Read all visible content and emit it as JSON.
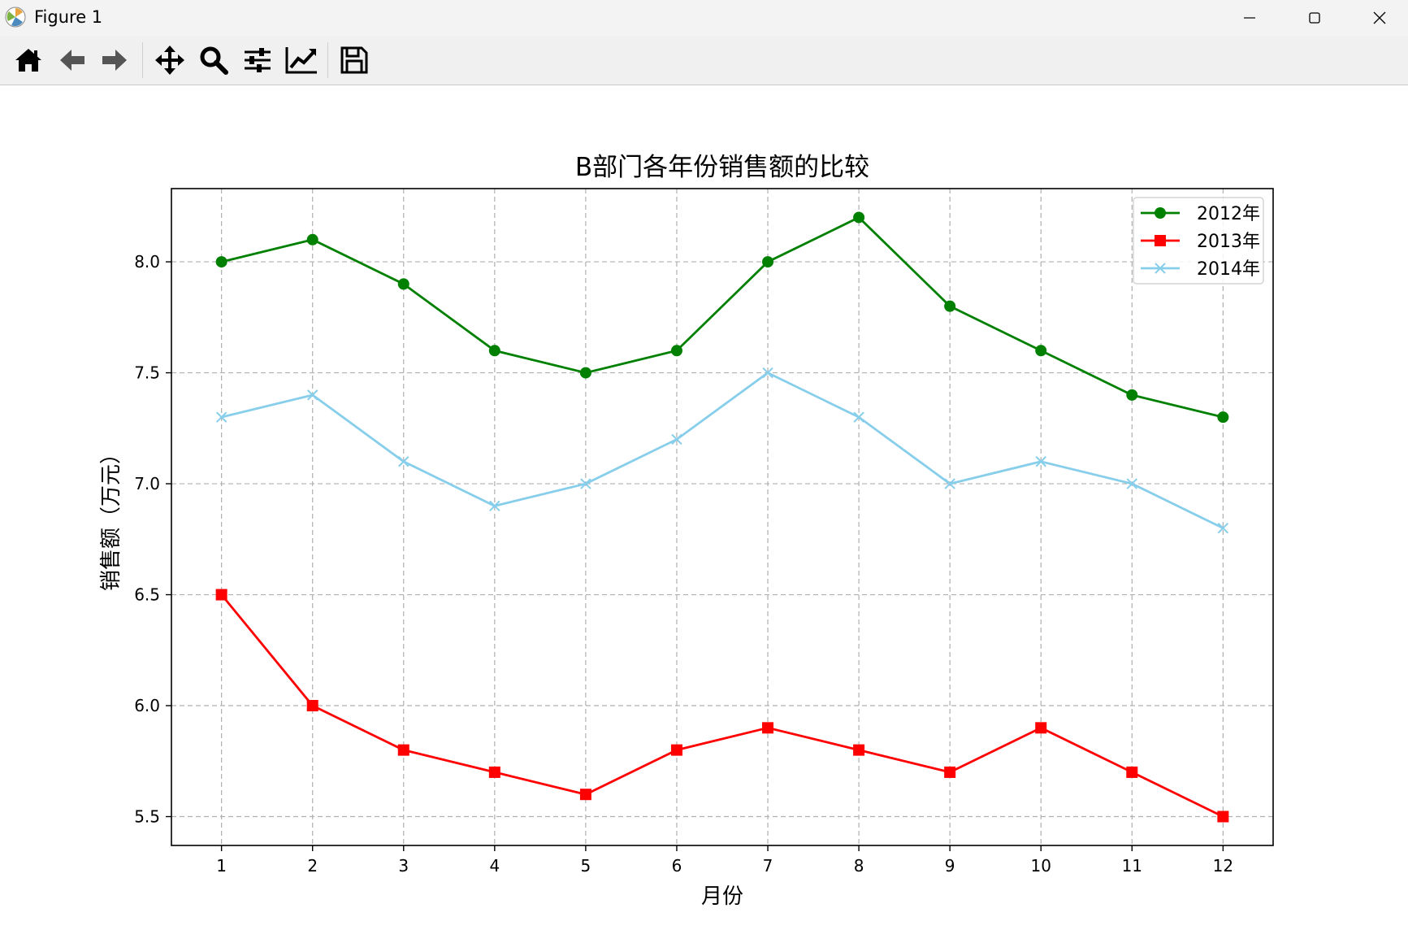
{
  "window": {
    "title": "Figure 1",
    "controls": [
      "minimize",
      "maximize",
      "close"
    ]
  },
  "toolbar": {
    "buttons": [
      {
        "name": "home",
        "icon": "home-icon"
      },
      {
        "name": "back",
        "icon": "arrow-left-icon"
      },
      {
        "name": "forward",
        "icon": "arrow-right-icon"
      },
      {
        "name": "pan",
        "icon": "move-icon"
      },
      {
        "name": "zoom",
        "icon": "magnifier-icon"
      },
      {
        "name": "subplots",
        "icon": "sliders-icon"
      },
      {
        "name": "edit-axes",
        "icon": "line-chart-icon"
      },
      {
        "name": "save",
        "icon": "floppy-disk-icon"
      }
    ]
  },
  "chart_data": {
    "type": "line",
    "title": "B部门各年份销售额的比较",
    "xlabel": "月份",
    "ylabel": "销售额（万元）",
    "x": [
      1,
      2,
      3,
      4,
      5,
      6,
      7,
      8,
      9,
      10,
      11,
      12
    ],
    "xticks": [
      "1",
      "2",
      "3",
      "4",
      "5",
      "6",
      "7",
      "8",
      "9",
      "10",
      "11",
      "12"
    ],
    "yticks": [
      "5.5",
      "6.0",
      "6.5",
      "7.0",
      "7.5",
      "8.0"
    ],
    "ylim": [
      5.37,
      8.33
    ],
    "xlim": [
      0.45,
      12.55
    ],
    "grid": true,
    "grid_style": "dashed",
    "legend_position": "upper right",
    "series": [
      {
        "name": "2012年",
        "color": "#008000",
        "marker": "circle",
        "values": [
          8.0,
          8.1,
          7.9,
          7.6,
          7.5,
          7.6,
          8.0,
          8.2,
          7.8,
          7.6,
          7.4,
          7.3
        ]
      },
      {
        "name": "2013年",
        "color": "#ff0000",
        "marker": "square",
        "values": [
          6.5,
          6.0,
          5.8,
          5.7,
          5.6,
          5.8,
          5.9,
          5.8,
          5.7,
          5.9,
          5.7,
          5.5
        ]
      },
      {
        "name": "2014年",
        "color": "#87ceeb",
        "marker": "x",
        "values": [
          7.3,
          7.4,
          7.1,
          6.9,
          7.0,
          7.2,
          7.5,
          7.3,
          7.0,
          7.1,
          7.0,
          6.8
        ]
      }
    ]
  }
}
